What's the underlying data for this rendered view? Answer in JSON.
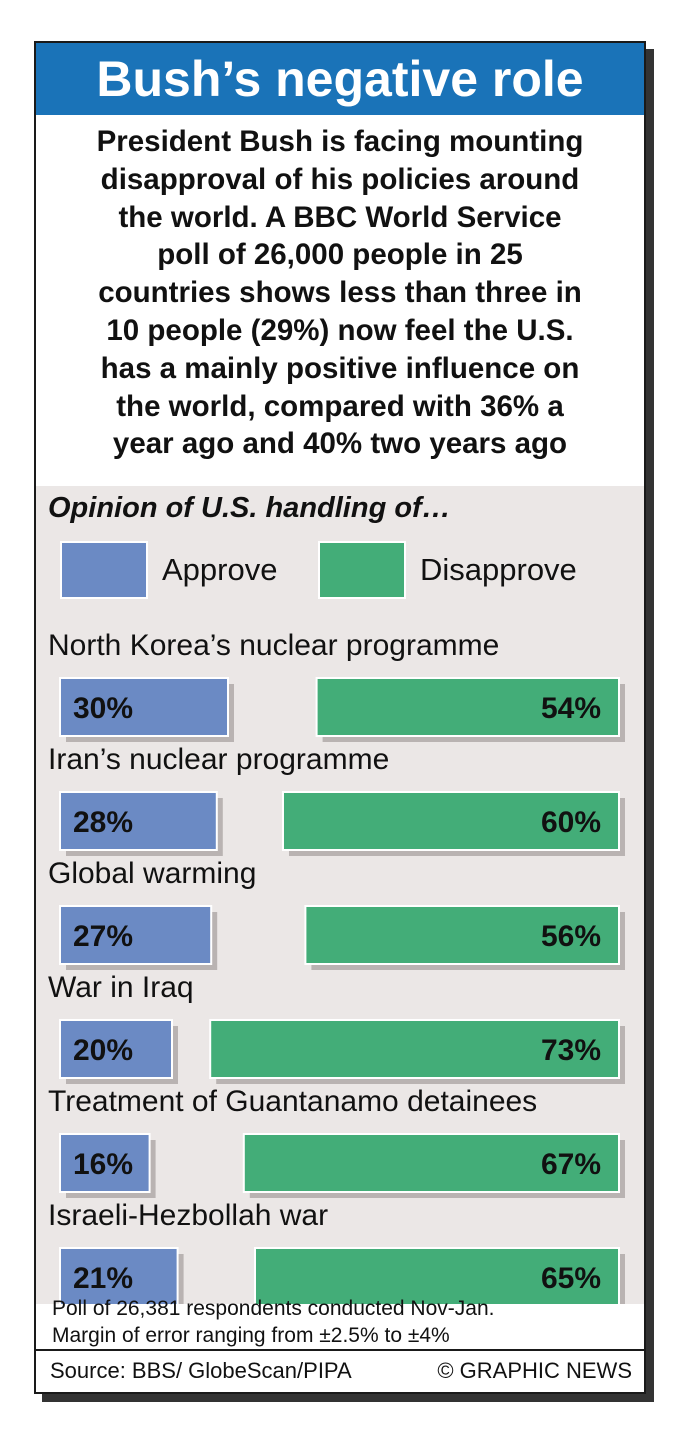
{
  "header": {
    "title": "Bush’s negative role"
  },
  "intro_lines": [
    "President Bush is facing mounting",
    "disapproval of his policies around",
    "the world. A BBC World Service",
    "poll of 26,000 people in 25",
    "countries shows less than three in",
    "10 people (29%) now feel the U.S.",
    "has a mainly positive influence on",
    "the world, compared with 36% a",
    "year ago and 40% two years ago"
  ],
  "chart_subtitle": "Opinion of U.S. handling of…",
  "colors": {
    "approve": "#6b8ac4",
    "disapprove": "#43ad78",
    "title_bar": "#1a73b8",
    "panel": "#ebe7e6"
  },
  "chart_data": {
    "type": "bar",
    "orientation": "horizontal",
    "categories": [
      "North Korea’s nuclear programme",
      "Iran’s nuclear programme",
      "Global warming",
      "War in Iraq",
      "Treatment of Guantanamo detainees",
      "Israeli-Hezbollah war"
    ],
    "series": [
      {
        "name": "Approve",
        "values": [
          30,
          28,
          27,
          20,
          16,
          21
        ],
        "labels": [
          "30%",
          "28%",
          "27%",
          "20%",
          "16%",
          "21%"
        ]
      },
      {
        "name": "Disapprove",
        "values": [
          54,
          60,
          56,
          73,
          67,
          65
        ],
        "labels": [
          "54%",
          "60%",
          "56%",
          "73%",
          "67%",
          "65%"
        ]
      }
    ],
    "legend_position": "top",
    "grid": false
  },
  "footnote_lines": [
    "Poll of 26,381 respondents conducted Nov-Jan.",
    "Margin of error ranging from ±2.5% to ±4%"
  ],
  "source": "Source: BBS/ GlobeScan/PIPA",
  "credit": "© GRAPHIC NEWS"
}
